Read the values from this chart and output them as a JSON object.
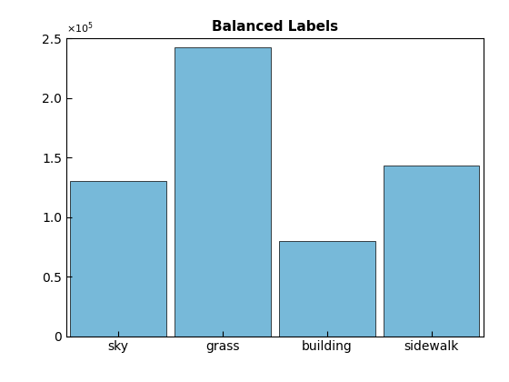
{
  "title": "Balanced Labels",
  "categories": [
    "sky",
    "grass",
    "building",
    "sidewalk"
  ],
  "values": [
    130000,
    242000,
    80000,
    143000
  ],
  "bar_color": "#77b9d9",
  "bar_edge_color": "#000000",
  "bar_edge_width": 0.5,
  "ylim": [
    0,
    250000
  ],
  "yticks": [
    0,
    50000,
    100000,
    150000,
    200000,
    250000
  ],
  "title_fontsize": 11,
  "tick_fontsize": 10,
  "background_color": "#ffffff",
  "bar_width": 0.92
}
